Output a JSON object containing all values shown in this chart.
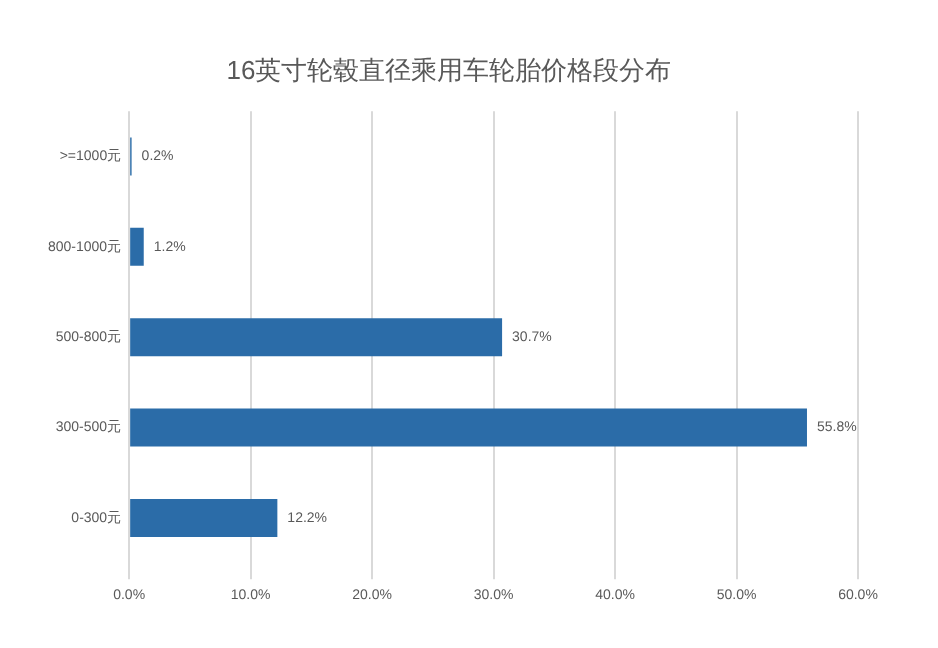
{
  "chart_data": {
    "type": "bar",
    "orientation": "horizontal",
    "title": "16英寸轮毂直径乘用车轮胎价格段分布",
    "categories": [
      ">=1000元",
      "800-1000元",
      "500-800元",
      "300-500元",
      "0-300元"
    ],
    "values": [
      0.2,
      1.2,
      30.7,
      55.8,
      12.2
    ],
    "color": "#2b6ca8",
    "value_labels": [
      "0.2%",
      "1.2%",
      "30.7%",
      "55.8%",
      "12.2%"
    ],
    "xlim": [
      0,
      60
    ],
    "xticks": [
      {
        "value": 0,
        "label": "0.0%"
      },
      {
        "value": 10,
        "label": "10.0%"
      },
      {
        "value": 20,
        "label": "20.0%"
      },
      {
        "value": 30,
        "label": "30.0%"
      },
      {
        "value": 40,
        "label": "40.0%"
      },
      {
        "value": 50,
        "label": "50.0%"
      },
      {
        "value": 60,
        "label": "60.0%"
      }
    ],
    "grid": "x",
    "legend": false
  }
}
